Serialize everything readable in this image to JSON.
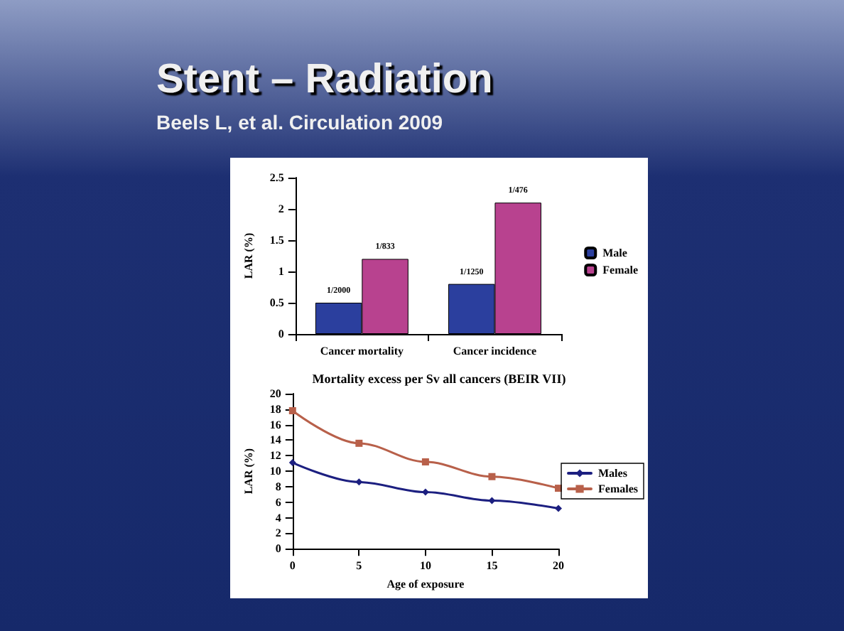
{
  "chart_data": [
    {
      "type": "bar",
      "title": "Stent – Radiation",
      "subtitle": "Beels L, et al. Circulation 2009",
      "ylabel": "LAR (%)",
      "categories": [
        "Cancer mortality",
        "Cancer incidence"
      ],
      "series": [
        {
          "name": "Male",
          "color": "#2b3f9e",
          "values": [
            0.5,
            0.8
          ],
          "value_labels": [
            "1/2000",
            "1/1250"
          ]
        },
        {
          "name": "Female",
          "color": "#b8428f",
          "values": [
            1.2,
            2.1
          ],
          "value_labels": [
            "1/833",
            "1/476"
          ]
        }
      ],
      "ylim": [
        0,
        2.5
      ],
      "yticks": [
        0,
        0.5,
        1,
        1.5,
        2,
        2.5
      ],
      "grid": false,
      "legend": "right"
    },
    {
      "type": "line",
      "title": "Mortality excess per Sv all cancers (BEIR VII)",
      "xlabel": "Age of exposure",
      "ylabel": "LAR (%)",
      "x": [
        0,
        5,
        10,
        15,
        20
      ],
      "series": [
        {
          "name": "Males",
          "color": "#1c1f80",
          "marker": "diamond",
          "values": [
            11.1,
            8.6,
            7.3,
            6.2,
            5.2
          ]
        },
        {
          "name": "Females",
          "color": "#b8604a",
          "marker": "square",
          "values": [
            17.8,
            13.6,
            11.2,
            9.3,
            7.8
          ]
        }
      ],
      "xlim": [
        0,
        20
      ],
      "xticks": [
        0,
        5,
        10,
        15,
        20
      ],
      "ylim": [
        0,
        20
      ],
      "yticks": [
        0,
        2,
        4,
        6,
        8,
        10,
        12,
        14,
        16,
        18,
        20
      ],
      "grid": false,
      "legend": "right"
    }
  ]
}
